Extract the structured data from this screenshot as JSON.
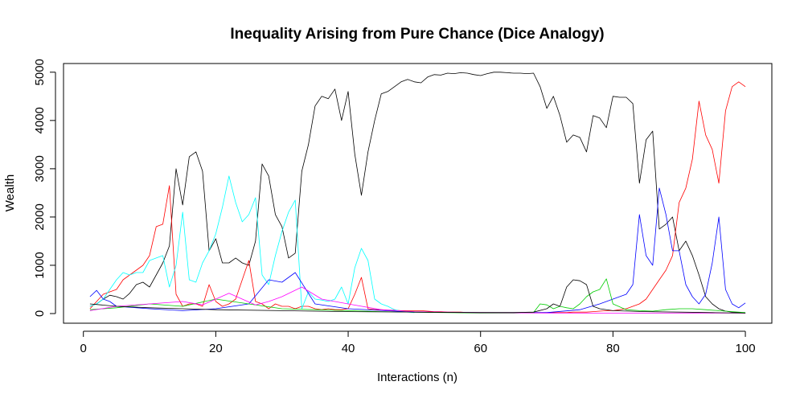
{
  "chart_data": {
    "type": "line",
    "title": "Inequality Arising from Pure Chance (Dice Analogy)",
    "xlabel": "Interactions (n)",
    "ylabel": "Wealth",
    "xlim": [
      -3,
      104
    ],
    "ylim": [
      -200,
      5180
    ],
    "xticks": [
      0,
      20,
      40,
      60,
      80,
      100
    ],
    "yticks": [
      0,
      1000,
      2000,
      3000,
      4000,
      5000
    ],
    "grid": false,
    "legend": "none",
    "series": [
      {
        "color": "#000000",
        "x": [
          1,
          2,
          3,
          4,
          5,
          6,
          7,
          8,
          9,
          10,
          11,
          12,
          13,
          14,
          15,
          16,
          17,
          18,
          19,
          20,
          21,
          22,
          23,
          24,
          25,
          26,
          27,
          28,
          29,
          30,
          31,
          32,
          33,
          34,
          35,
          36,
          37,
          38,
          39,
          40,
          41,
          42,
          43,
          44,
          45,
          46,
          47,
          48,
          49,
          50,
          51,
          52,
          53,
          54,
          55,
          56,
          57,
          58,
          59,
          60,
          61,
          62,
          63,
          64,
          65,
          66,
          67,
          68,
          69,
          70,
          71,
          72,
          73,
          74,
          75,
          76,
          77,
          78,
          79,
          80,
          81,
          82,
          83,
          84,
          85,
          86,
          87,
          88,
          89,
          90,
          91,
          92,
          93,
          94,
          95,
          96,
          97,
          98,
          99,
          100
        ],
        "y": [
          150,
          200,
          300,
          380,
          350,
          300,
          420,
          600,
          650,
          550,
          800,
          1050,
          1400,
          3000,
          2250,
          3250,
          3350,
          2950,
          1300,
          1550,
          1050,
          1050,
          1150,
          1050,
          1000,
          1500,
          3100,
          2850,
          2050,
          1800,
          1150,
          1250,
          2950,
          3500,
          4300,
          4500,
          4450,
          4650,
          4000,
          4600,
          3300,
          2450,
          3350,
          4000,
          4550,
          4600,
          4700,
          4800,
          4850,
          4800,
          4780,
          4900,
          4950,
          4940,
          4980,
          4970,
          4990,
          4980,
          4950,
          4930,
          4970,
          5000,
          5000,
          4990,
          4980,
          4980,
          4970,
          4980,
          4700,
          4250,
          4500,
          4100,
          3550,
          3700,
          3650,
          3350,
          4100,
          4050,
          3850,
          4500,
          4480,
          4480,
          4350,
          2700,
          3600,
          3780,
          1750,
          1850,
          2000,
          1300,
          1500,
          1200,
          800,
          350,
          200,
          100,
          50,
          30,
          20,
          10
        ]
      },
      {
        "color": "#ff0000",
        "x": [
          1,
          2,
          3,
          4,
          5,
          6,
          7,
          8,
          9,
          10,
          11,
          12,
          13,
          14,
          15,
          16,
          17,
          18,
          19,
          20,
          21,
          22,
          23,
          24,
          25,
          26,
          27,
          28,
          29,
          30,
          31,
          32,
          33,
          34,
          35,
          36,
          37,
          38,
          39,
          40,
          41,
          42,
          43,
          44,
          45,
          46,
          47,
          48,
          49,
          50,
          51,
          52,
          53,
          54,
          55,
          56,
          57,
          58,
          59,
          60,
          61,
          62,
          63,
          64,
          65,
          66,
          67,
          68,
          69,
          70,
          71,
          72,
          73,
          74,
          75,
          76,
          77,
          78,
          79,
          80,
          81,
          82,
          83,
          84,
          85,
          86,
          87,
          88,
          89,
          90,
          91,
          92,
          93,
          94,
          95,
          96,
          97,
          98,
          99,
          100
        ],
        "y": [
          100,
          250,
          400,
          450,
          500,
          700,
          800,
          900,
          1000,
          1200,
          1800,
          1850,
          2650,
          400,
          150,
          200,
          200,
          150,
          600,
          250,
          150,
          200,
          300,
          700,
          1100,
          250,
          200,
          100,
          200,
          150,
          150,
          100,
          150,
          150,
          100,
          80,
          100,
          80,
          80,
          100,
          400,
          750,
          100,
          80,
          80,
          70,
          70,
          60,
          60,
          60,
          60,
          50,
          40,
          40,
          30,
          30,
          30,
          20,
          20,
          20,
          20,
          20,
          20,
          20,
          20,
          20,
          20,
          20,
          20,
          20,
          20,
          20,
          20,
          30,
          30,
          30,
          40,
          50,
          60,
          60,
          80,
          100,
          150,
          200,
          300,
          500,
          700,
          900,
          1200,
          2300,
          2600,
          3200,
          4400,
          3700,
          3400,
          2700,
          4200,
          4700,
          4800,
          4700
        ]
      },
      {
        "color": "#00ffff",
        "x": [
          1,
          2,
          3,
          4,
          5,
          6,
          7,
          8,
          9,
          10,
          11,
          12,
          13,
          14,
          15,
          16,
          17,
          18,
          19,
          20,
          21,
          22,
          23,
          24,
          25,
          26,
          27,
          28,
          29,
          30,
          31,
          32,
          33,
          34,
          35,
          36,
          37,
          38,
          39,
          40,
          41,
          42,
          43,
          44,
          45,
          46,
          47,
          48,
          49,
          50
        ],
        "y": [
          150,
          200,
          300,
          500,
          700,
          850,
          800,
          850,
          850,
          1100,
          1150,
          1200,
          550,
          1000,
          2100,
          700,
          650,
          1050,
          1300,
          1650,
          2200,
          2850,
          2300,
          1900,
          2050,
          2400,
          800,
          600,
          1200,
          1700,
          2100,
          2350,
          100,
          450,
          300,
          280,
          250,
          300,
          550,
          200,
          950,
          1350,
          1100,
          300,
          200,
          150,
          80,
          50,
          30,
          20
        ]
      },
      {
        "color": "#0000ff",
        "x": [
          1,
          2,
          3,
          4,
          5,
          10,
          15,
          20,
          25,
          28,
          30,
          32,
          35,
          40,
          50,
          60,
          70,
          75,
          78,
          80,
          82,
          83,
          84,
          85,
          86,
          87,
          88,
          89,
          90,
          91,
          92,
          93,
          94,
          95,
          96,
          97,
          98,
          99,
          100
        ],
        "y": [
          350,
          480,
          300,
          250,
          150,
          100,
          60,
          100,
          200,
          700,
          650,
          850,
          200,
          100,
          30,
          20,
          20,
          80,
          200,
          300,
          400,
          600,
          2050,
          1200,
          1000,
          2600,
          2050,
          1300,
          1300,
          600,
          350,
          200,
          400,
          1050,
          2000,
          500,
          200,
          120,
          220
        ]
      },
      {
        "color": "#00cd00",
        "x": [
          1,
          5,
          10,
          15,
          20,
          25,
          30,
          35,
          40,
          45,
          50,
          55,
          60,
          65,
          68,
          69,
          70,
          71,
          72,
          73,
          74,
          75,
          76,
          77,
          78,
          79,
          80,
          82,
          84,
          86,
          88,
          90,
          92,
          94,
          96,
          98,
          100
        ],
        "y": [
          80,
          120,
          200,
          150,
          300,
          200,
          100,
          80,
          60,
          40,
          30,
          20,
          10,
          10,
          20,
          200,
          180,
          100,
          150,
          120,
          100,
          200,
          350,
          450,
          500,
          720,
          200,
          80,
          60,
          50,
          80,
          100,
          100,
          80,
          60,
          40,
          20
        ]
      },
      {
        "color": "#ff00ff",
        "x": [
          1,
          5,
          10,
          15,
          18,
          20,
          22,
          24,
          26,
          28,
          30,
          33,
          36,
          40,
          45,
          50,
          60,
          70,
          80,
          90,
          100
        ],
        "y": [
          60,
          150,
          200,
          250,
          180,
          300,
          420,
          300,
          180,
          250,
          350,
          550,
          300,
          200,
          80,
          40,
          20,
          10,
          10,
          10,
          10
        ]
      },
      {
        "color": "#000000",
        "x": [
          1,
          5,
          10,
          15,
          20,
          30,
          40,
          50,
          60,
          65,
          68,
          70,
          71,
          72,
          73,
          74,
          75,
          76,
          77,
          78,
          80,
          85,
          90,
          95,
          100
        ],
        "y": [
          200,
          150,
          120,
          100,
          80,
          60,
          40,
          30,
          20,
          20,
          30,
          100,
          200,
          150,
          550,
          700,
          680,
          600,
          150,
          100,
          60,
          40,
          30,
          20,
          10
        ]
      }
    ]
  }
}
